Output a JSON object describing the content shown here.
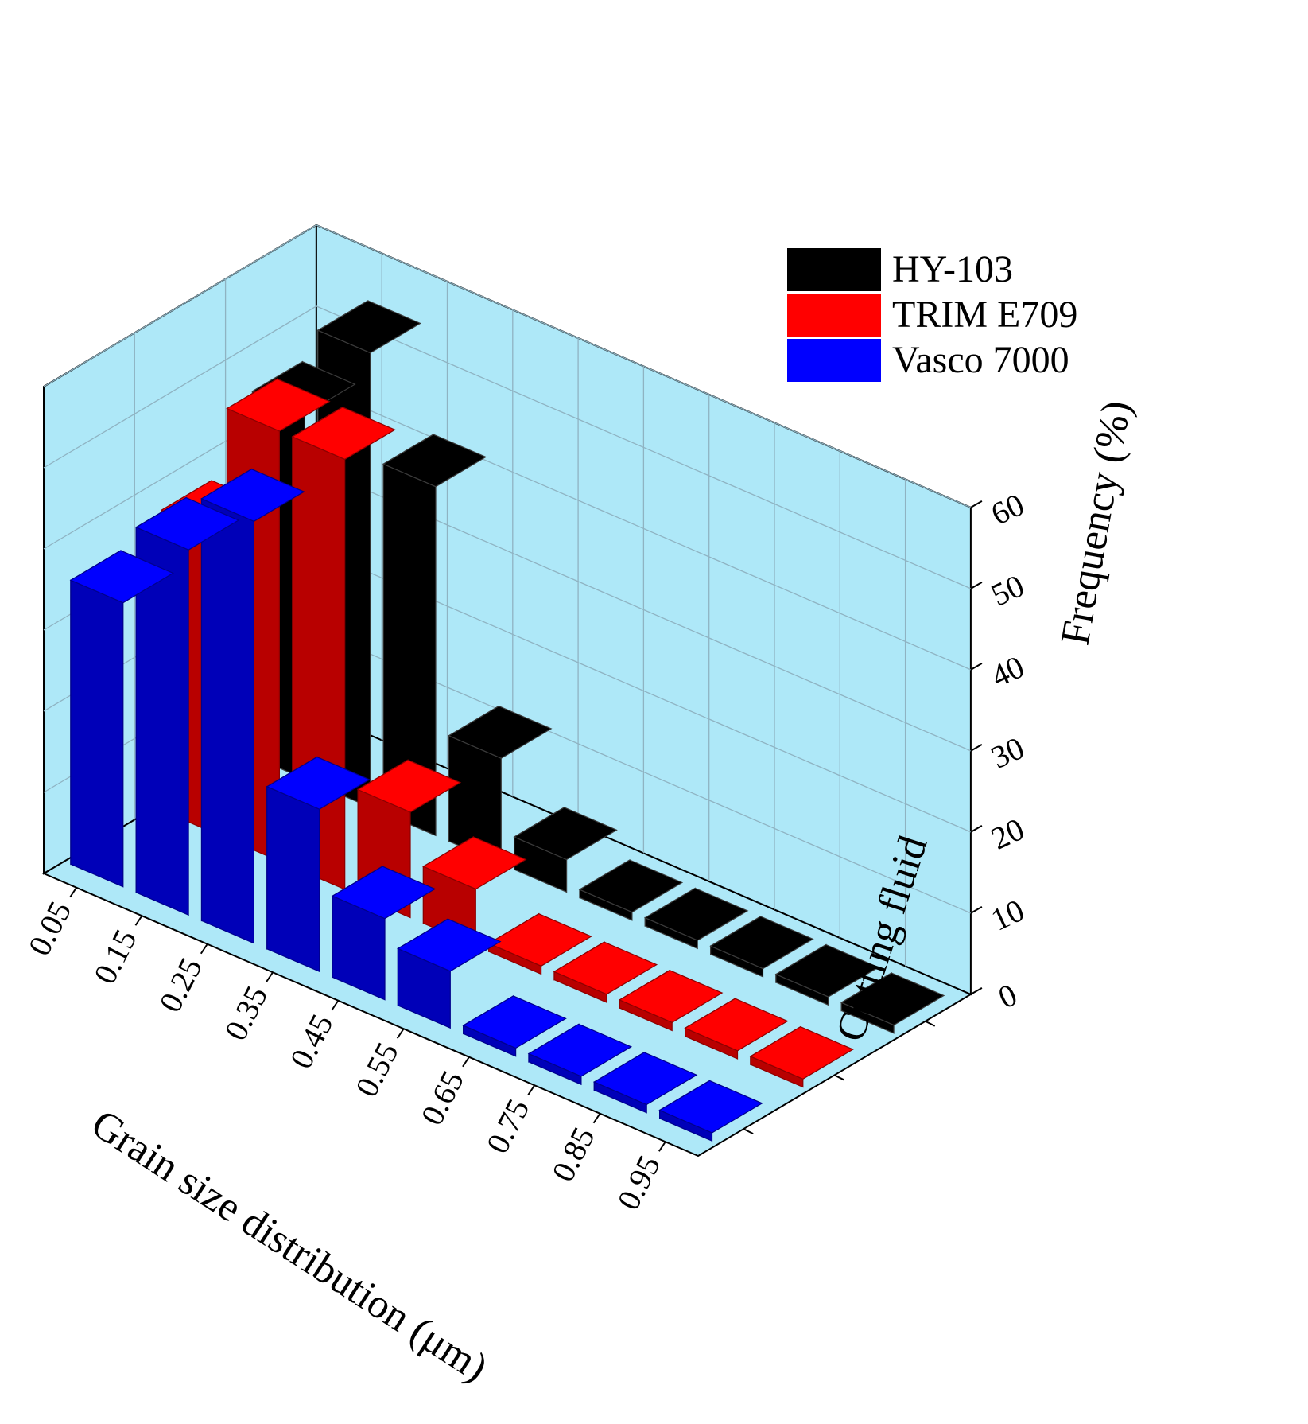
{
  "chart_data": {
    "type": "bar3d",
    "categories": [
      "0.05",
      "0.15",
      "0.25",
      "0.35",
      "0.45",
      "0.55",
      "0.65",
      "0.75",
      "0.85",
      "0.95"
    ],
    "series": [
      {
        "name": "Vasco 7000",
        "color": "#0000ff",
        "values": [
          35,
          45,
          52,
          20,
          10,
          7,
          1,
          1,
          1,
          1
        ]
      },
      {
        "name": "TRIM E709",
        "color": "#ff0000",
        "values": [
          37,
          53,
          53,
          13,
          7,
          1,
          1,
          1,
          1,
          1
        ]
      },
      {
        "name": "HY-103",
        "color": "#000000",
        "values": [
          45,
          56,
          43,
          13,
          4,
          1,
          1,
          1,
          1,
          1
        ]
      }
    ],
    "xlabel": "Grain size distribution (μm)",
    "ylabel": "Cutting fluid",
    "zlabel": "Frequency (%)",
    "z_ticks": [
      "0",
      "10",
      "20",
      "30",
      "40",
      "50",
      "60"
    ],
    "zlim": [
      0,
      60
    ],
    "grid": true,
    "legend_position": "top-right",
    "background_color": "#aee8f8"
  }
}
